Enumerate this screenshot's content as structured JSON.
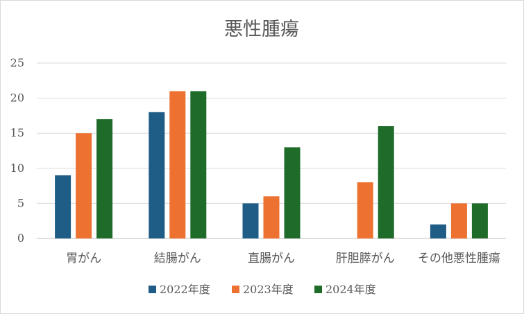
{
  "chart_data": {
    "type": "bar",
    "title": "悪性腫瘍",
    "xlabel": "",
    "ylabel": "",
    "ylim": [
      0,
      25
    ],
    "yticks": [
      0,
      5,
      10,
      15,
      20,
      25
    ],
    "grid": true,
    "legend_position": "bottom",
    "categories": [
      "胃がん",
      "結腸がん",
      "直腸がん",
      "肝胆膵がん",
      "その他悪性腫瘍"
    ],
    "series": [
      {
        "name": "2022年度",
        "color": "#1f5c86",
        "values": [
          9,
          18,
          5,
          0,
          2
        ]
      },
      {
        "name": "2023年度",
        "color": "#ed7130",
        "values": [
          15,
          21,
          6,
          8,
          5
        ]
      },
      {
        "name": "2024年度",
        "color": "#1e6b2a",
        "values": [
          17,
          21,
          13,
          16,
          5
        ]
      }
    ]
  }
}
